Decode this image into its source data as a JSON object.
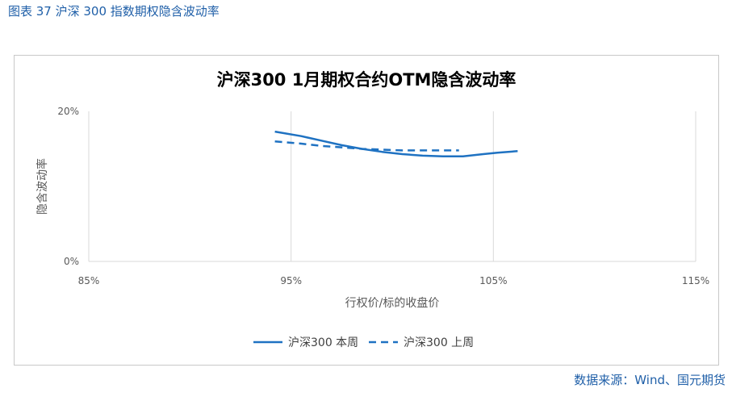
{
  "caption": "图表 37 沪深 300 指数期权隐含波动率",
  "source": "数据来源：Wind、国元期货",
  "colors": {
    "series": "#1f72c2",
    "grid": "#d9d9d9",
    "caption": "#1f5fa8"
  },
  "chart_data": {
    "type": "line",
    "title": "沪深300 1月期权合约OTM隐含波动率",
    "xlabel": "行权价/标的收盘价",
    "ylabel": "隐含波动率",
    "xlim": [
      0.85,
      1.15
    ],
    "ylim": [
      0,
      0.2
    ],
    "x_ticks": [
      0.85,
      0.95,
      1.05,
      1.15
    ],
    "x_tick_labels": [
      "85%",
      "95%",
      "105%",
      "115%"
    ],
    "y_ticks": [
      0,
      0.2
    ],
    "y_tick_labels": [
      "0%",
      "20%"
    ],
    "grid": "vertical",
    "legend": "bottom",
    "series": [
      {
        "name": "沪深300 本周",
        "style": "solid",
        "x": [
          0.942,
          0.955,
          0.965,
          0.975,
          0.985,
          0.995,
          1.005,
          1.015,
          1.025,
          1.035,
          1.045,
          1.052,
          1.062
        ],
        "y": [
          0.173,
          0.167,
          0.161,
          0.155,
          0.15,
          0.146,
          0.143,
          0.141,
          0.14,
          0.14,
          0.143,
          0.145,
          0.147
        ]
      },
      {
        "name": "沪深300 上周",
        "style": "dashed",
        "x": [
          0.942,
          0.955,
          0.965,
          0.975,
          0.985,
          0.995,
          1.005,
          1.015,
          1.025,
          1.033
        ],
        "y": [
          0.16,
          0.157,
          0.154,
          0.152,
          0.15,
          0.149,
          0.148,
          0.148,
          0.148,
          0.148
        ]
      }
    ]
  }
}
